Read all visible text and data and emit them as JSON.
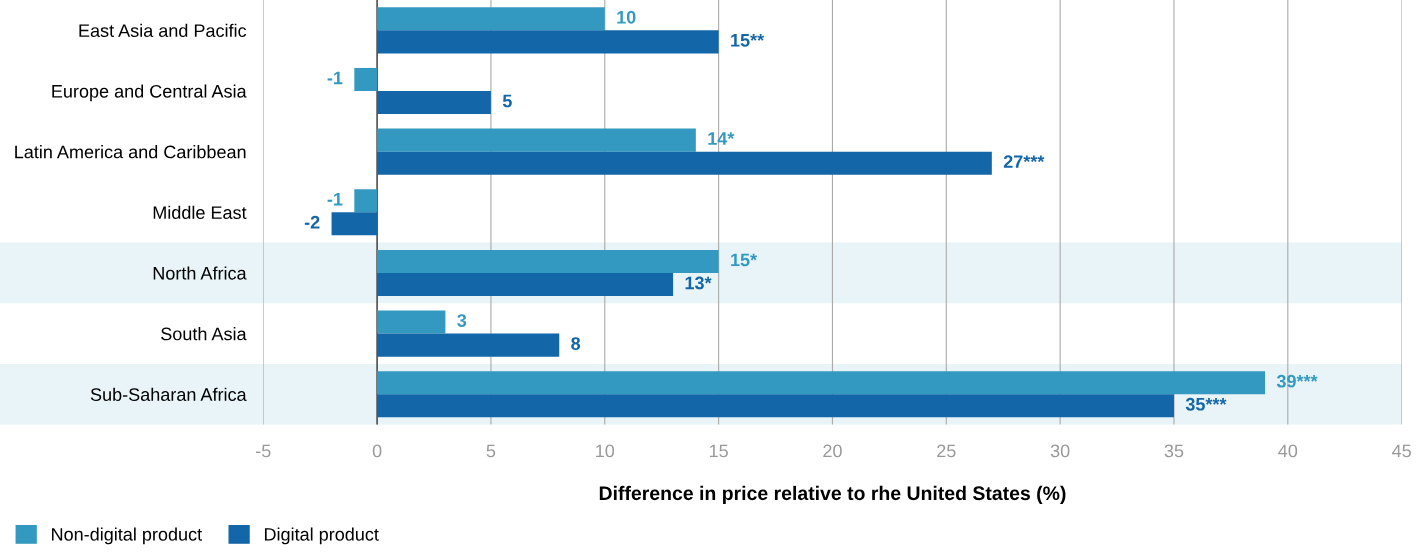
{
  "chart_data": {
    "type": "bar",
    "orientation": "horizontal",
    "xlabel": "Difference in price relative to rhe United States (%)",
    "categories": [
      "East Asia and Pacific",
      "Europe and Central Asia",
      "Latin America and Caribbean",
      "Middle East",
      "North Africa",
      "South Asia",
      "Sub-Saharan Africa"
    ],
    "series": [
      {
        "name": "Non-digital product",
        "color": "#3399c0",
        "values": [
          10,
          -1,
          14,
          -1,
          15,
          3,
          39
        ],
        "value_labels": [
          "10",
          "-1",
          "14*",
          "-1",
          "15*",
          "3",
          "39***"
        ]
      },
      {
        "name": "Digital product",
        "color": "#1366a8",
        "values": [
          15,
          5,
          27,
          -2,
          13,
          8,
          35
        ],
        "value_labels": [
          "15**",
          "5",
          "27***",
          "-2",
          "13*",
          "8",
          "35***"
        ]
      }
    ],
    "xlim": [
      -5,
      45
    ],
    "xticks": [
      -5,
      0,
      5,
      10,
      15,
      20,
      25,
      30,
      35,
      40,
      45
    ],
    "grid": "x",
    "legend": "bottom left",
    "bands": [
      {
        "axis": "y",
        "from": "North Africa",
        "to": "North Africa",
        "color": "#e8f4f7"
      },
      {
        "axis": "y",
        "from": "Sub-Saharan Africa",
        "to": "Sub-Saharan Africa",
        "color": "#e8f4f7"
      }
    ]
  }
}
